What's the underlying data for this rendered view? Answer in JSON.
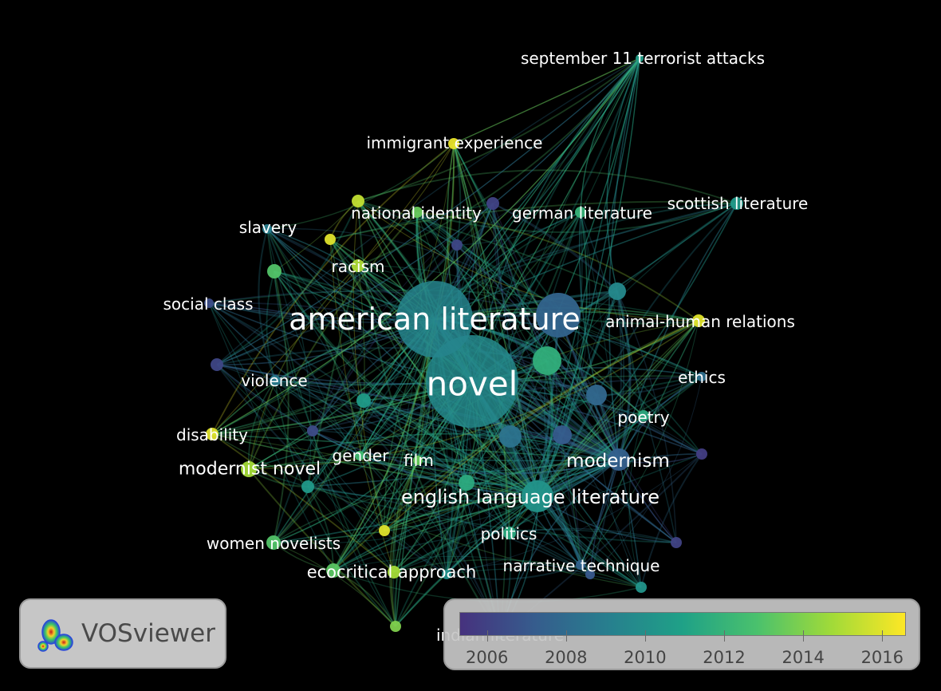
{
  "app": {
    "name": "VOSviewer"
  },
  "network": {
    "items": [
      {
        "label": "american literature",
        "year": 2009.4
      },
      {
        "label": "novel",
        "year": 2009.6
      },
      {
        "label": "english language literature",
        "year": 2010.2
      },
      {
        "label": "modernism",
        "year": 2007.4
      },
      {
        "label": "september 11 terrorist attacks",
        "year": 2010.8
      },
      {
        "label": "immigrant experience",
        "year": 2016.2
      },
      {
        "label": "national identity",
        "year": 2013.5
      },
      {
        "label": "german literature",
        "year": 2012.0
      },
      {
        "label": "scottish literature",
        "year": 2010.5
      },
      {
        "label": "slavery",
        "year": 2009.0
      },
      {
        "label": "racism",
        "year": 2015.0
      },
      {
        "label": "social class",
        "year": 2006.5
      },
      {
        "label": "animal-human relations",
        "year": 2016.0
      },
      {
        "label": "violence",
        "year": 2008.8
      },
      {
        "label": "ethics",
        "year": 2008.2
      },
      {
        "label": "poetry",
        "year": 2011.5
      },
      {
        "label": "disability",
        "year": 2016.0
      },
      {
        "label": "gender",
        "year": 2012.5
      },
      {
        "label": "film",
        "year": 2013.5
      },
      {
        "label": "modernist novel",
        "year": 2014.8
      },
      {
        "label": "politics",
        "year": 2011.5
      },
      {
        "label": "women novelists",
        "year": 2013.0
      },
      {
        "label": "ecocritical approach",
        "year": 2013.2
      },
      {
        "label": "narrative technique",
        "year": 2007.5
      },
      {
        "label": "indian literature",
        "year": 2009.0
      }
    ]
  },
  "legend": {
    "min": 2005.3,
    "max": 2016.6,
    "ticks": [
      "2006",
      "2008",
      "2010",
      "2012",
      "2014",
      "2016"
    ]
  },
  "colors": {
    "background": "#000000",
    "scale": [
      "#46327e",
      "#365c8d",
      "#277f8e",
      "#1fa187",
      "#4ac16d",
      "#a0da39",
      "#fde725"
    ]
  }
}
